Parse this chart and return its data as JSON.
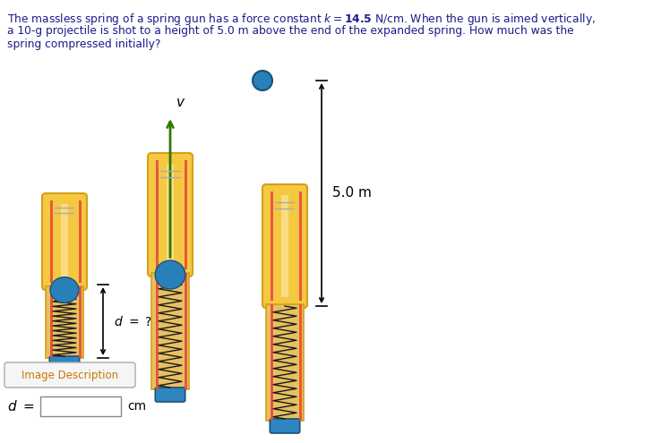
{
  "title_color": "#1a1a8c",
  "bg_color": "#ffffff",
  "gun_color": "#f5c842",
  "gun_outline": "#d4a017",
  "gun_top_color": "#f5c842",
  "spring_color": "#1a1a1a",
  "ball_color": "#2980b9",
  "ball_edge_color": "#1a5276",
  "base_color": "#2e86c1",
  "base_edge_color": "#1a5276",
  "red_stripe_color": "#e74c3c",
  "arrow_color": "#2d7a00",
  "annotation_color": "#000000",
  "height_label": "5.0 m",
  "d_label": "d  =  ?",
  "v_label": "v",
  "input_label": "d =",
  "unit_label": "cm",
  "image_desc_label": "Image Description",
  "image_desc_color": "#c87800",
  "title_line1": "The massless spring of a spring gun has a force constant ",
  "title_bold": "14.5",
  "title_line1b": " N/cm. When the gun is aimed vertically,",
  "title_line2": "a 10-g projectile is shot to a height of 5.0 m above the end of the expanded spring. How much was the",
  "title_line3": "spring compressed initially?"
}
